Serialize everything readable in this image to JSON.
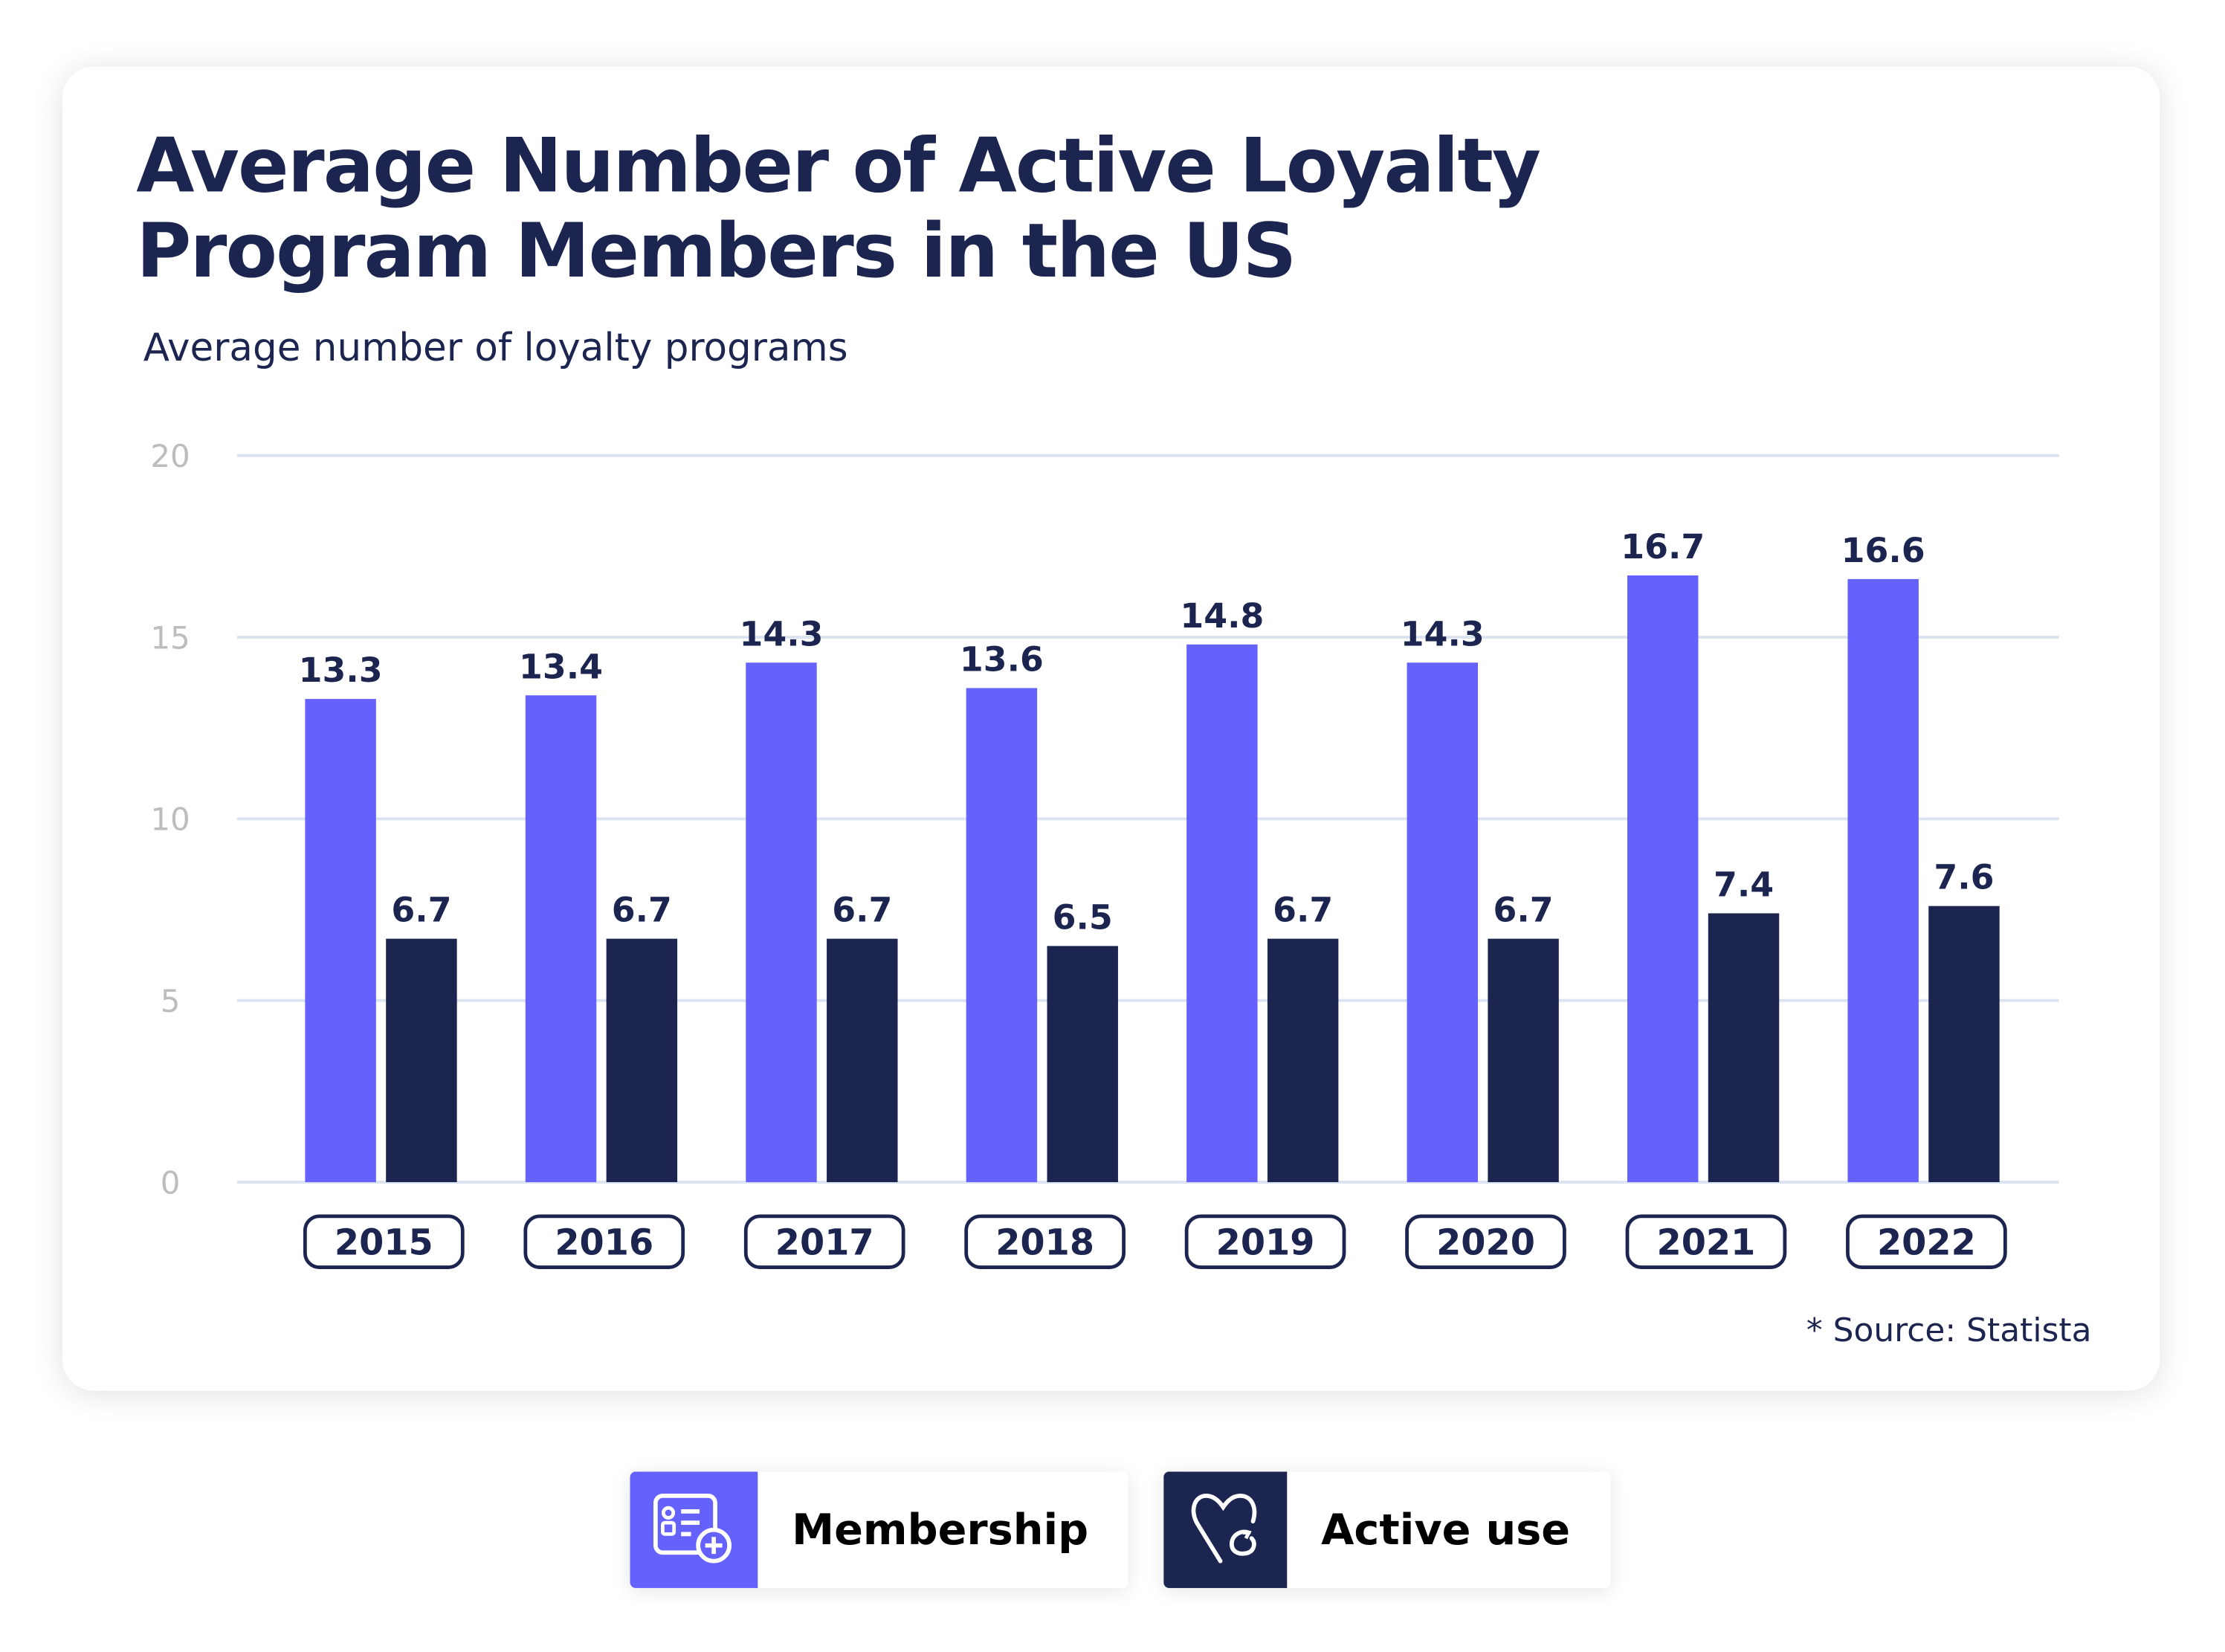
{
  "title_lines": [
    "Average Number of Active Loyalty",
    "Program Members in the US"
  ],
  "subtitle": "Average number of loyalty programs",
  "source": "* Source: Statista",
  "colors": {
    "membership": "#6461fc",
    "active_use": "#1b2550",
    "grid": "#dbe2f0",
    "tick": "#bdbdbd"
  },
  "legend": [
    {
      "label": "Membership",
      "icon": "membership-card-plus-icon"
    },
    {
      "label": "Active use",
      "icon": "heart-refresh-icon"
    }
  ],
  "chart_data": {
    "type": "bar",
    "title": "Average Number of Active Loyalty Program Members in the US",
    "ylabel": "Average number of loyalty programs",
    "ylim": [
      0,
      20
    ],
    "yticks": [
      0,
      5,
      10,
      15,
      20
    ],
    "grid": true,
    "legend_placement": "bottom",
    "categories": [
      "2015",
      "2016",
      "2017",
      "2018",
      "2019",
      "2020",
      "2021",
      "2022"
    ],
    "series": [
      {
        "name": "Membership",
        "values": [
          13.3,
          13.4,
          14.3,
          13.6,
          14.8,
          14.3,
          16.7,
          16.6
        ]
      },
      {
        "name": "Active use",
        "values": [
          6.7,
          6.7,
          6.7,
          6.5,
          6.7,
          6.7,
          7.4,
          7.6
        ]
      }
    ]
  }
}
